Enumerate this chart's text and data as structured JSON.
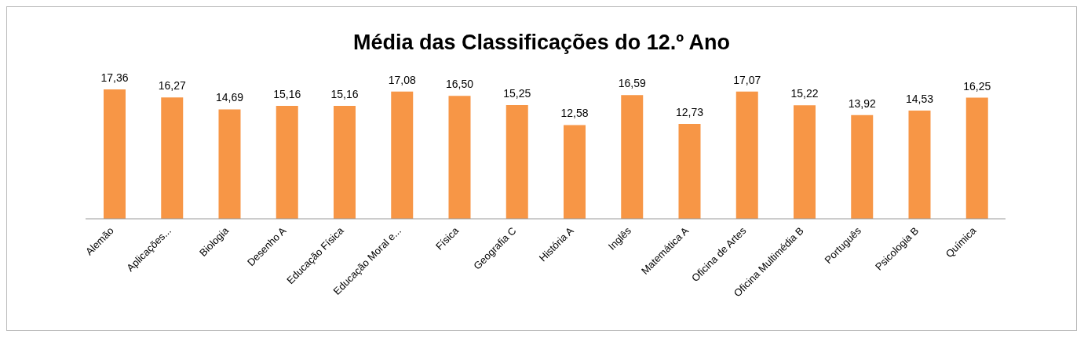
{
  "chart_data": {
    "type": "bar",
    "title": "Média das Classificações do 12.º Ano",
    "categories": [
      "Alemão",
      "Aplicações...",
      "Biologia",
      "Desenho A",
      "Educação Física",
      "Educação Moral e...",
      "Física",
      "Geografia C",
      "História A",
      "Inglês",
      "Matemática A",
      "Oficina de Artes",
      "Oficina Multimédia B",
      "Português",
      "Psicologia B",
      "Química"
    ],
    "values": [
      17.36,
      16.27,
      14.69,
      15.16,
      15.16,
      17.08,
      16.5,
      15.25,
      12.58,
      16.59,
      12.73,
      17.07,
      15.22,
      13.92,
      14.53,
      16.25
    ],
    "value_labels": [
      "17,36",
      "16,27",
      "14,69",
      "15,16",
      "15,16",
      "17,08",
      "16,50",
      "15,25",
      "12,58",
      "16,59",
      "12,73",
      "17,07",
      "15,22",
      "13,92",
      "14,53",
      "16,25"
    ],
    "color": "#f79646",
    "tick_labels": "x"
  }
}
